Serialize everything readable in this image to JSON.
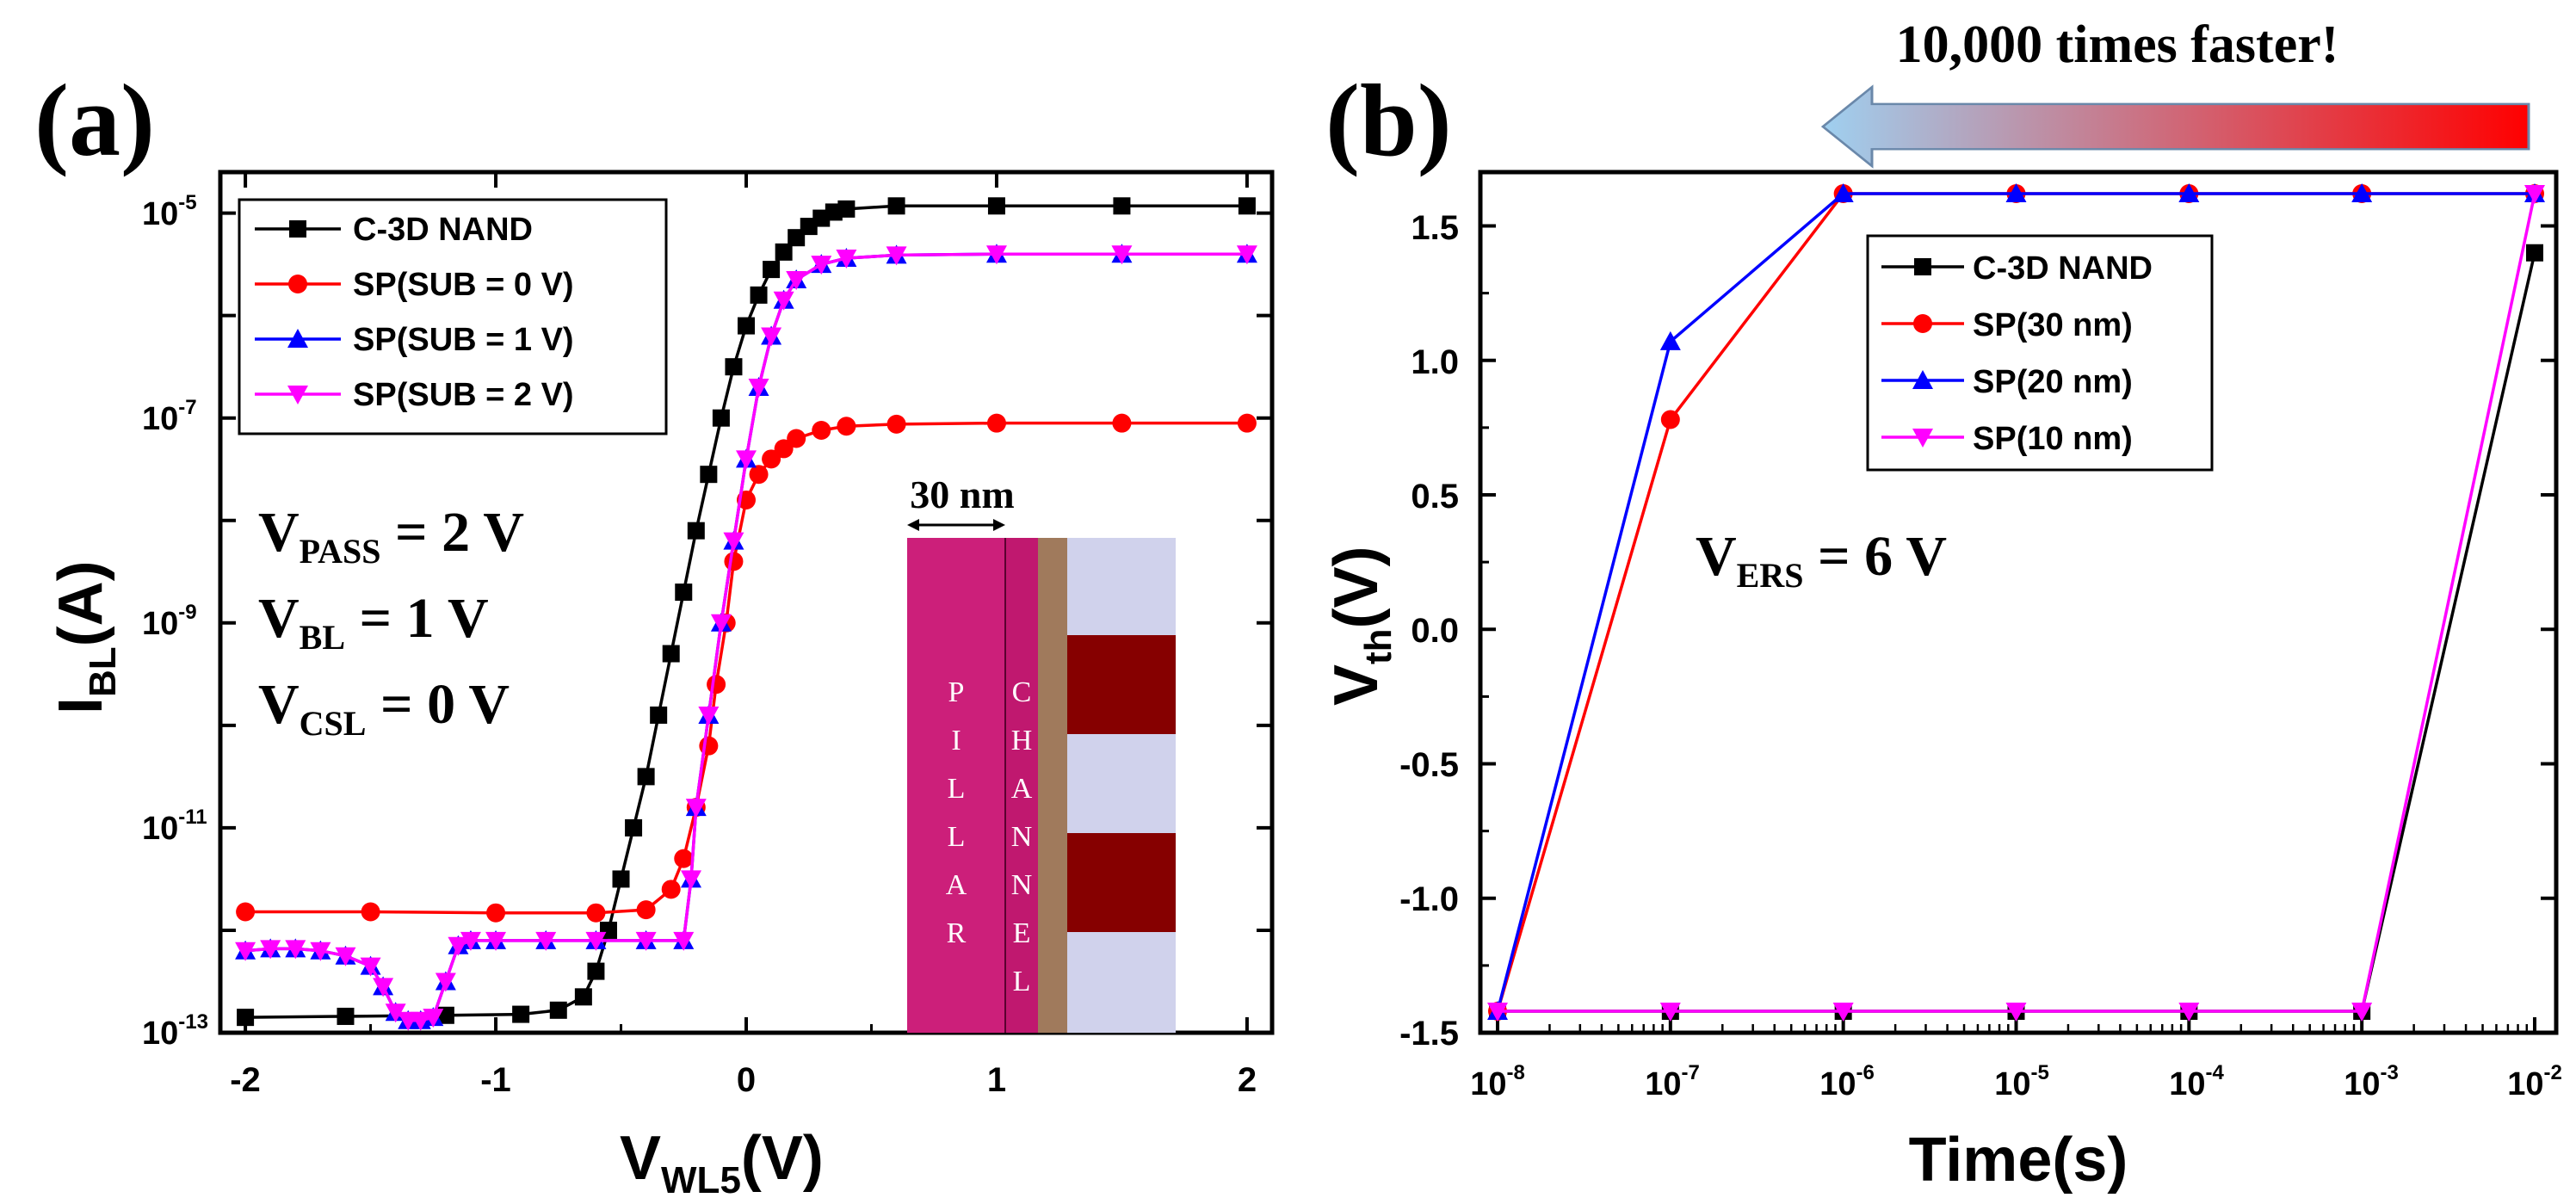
{
  "chart_data": [
    {
      "type": "line",
      "panel_label": "(a)",
      "xlabel_main": "V",
      "xlabel_sub": "WL5",
      "xlabel_unit": "(V)",
      "ylabel_main": "I",
      "ylabel_sub": "BL",
      "ylabel_unit": "(A)",
      "xlim": [
        -2.1,
        2.1
      ],
      "ylim_log10": [
        -13,
        -4.6
      ],
      "y_scale": "log",
      "x_ticks": [
        -2,
        -1,
        0,
        1,
        2
      ],
      "x_tick_labels": [
        "-2",
        "-1",
        "0",
        "1",
        "2"
      ],
      "y_ticks": [
        -13,
        -11,
        -9,
        -7,
        -5
      ],
      "y_tick_labels": [
        {
          "base": "10",
          "exp": "-13"
        },
        {
          "base": "10",
          "exp": "-11"
        },
        {
          "base": "10",
          "exp": "-9"
        },
        {
          "base": "10",
          "exp": "-7"
        },
        {
          "base": "10",
          "exp": "-5"
        }
      ],
      "legend_position": "top-left",
      "series": [
        {
          "name": "C-3D NAND",
          "color": "#000000",
          "marker": "square",
          "x": [
            -2.0,
            -1.6,
            -1.2,
            -0.9,
            -0.75,
            -0.65,
            -0.6,
            -0.55,
            -0.5,
            -0.45,
            -0.4,
            -0.35,
            -0.3,
            -0.25,
            -0.2,
            -0.15,
            -0.1,
            -0.05,
            0.0,
            0.05,
            0.1,
            0.15,
            0.2,
            0.25,
            0.3,
            0.35,
            0.4,
            0.6,
            1.0,
            1.5,
            2.0
          ],
          "y_log10": [
            -12.85,
            -12.84,
            -12.83,
            -12.82,
            -12.78,
            -12.65,
            -12.4,
            -12.0,
            -11.5,
            -11.0,
            -10.5,
            -9.9,
            -9.3,
            -8.7,
            -8.1,
            -7.55,
            -7.0,
            -6.5,
            -6.1,
            -5.8,
            -5.55,
            -5.38,
            -5.24,
            -5.13,
            -5.05,
            -4.99,
            -4.96,
            -4.93,
            -4.93,
            -4.93,
            -4.93
          ]
        },
        {
          "name": "SP(SUB = 0 V)",
          "color": "#ff0000",
          "marker": "circle",
          "x": [
            -2.0,
            -1.5,
            -1.0,
            -0.6,
            -0.4,
            -0.3,
            -0.25,
            -0.2,
            -0.15,
            -0.12,
            -0.08,
            -0.05,
            0.0,
            0.05,
            0.1,
            0.15,
            0.2,
            0.3,
            0.4,
            0.6,
            1.0,
            1.5,
            2.0
          ],
          "y_log10": [
            -11.82,
            -11.82,
            -11.83,
            -11.83,
            -11.8,
            -11.6,
            -11.3,
            -10.8,
            -10.2,
            -9.6,
            -9.0,
            -8.4,
            -7.8,
            -7.55,
            -7.4,
            -7.3,
            -7.2,
            -7.12,
            -7.08,
            -7.06,
            -7.05,
            -7.05,
            -7.05
          ]
        },
        {
          "name": "SP(SUB = 1 V)",
          "color": "#0000ff",
          "marker": "triangle-up",
          "x": [
            -2.0,
            -1.9,
            -1.8,
            -1.7,
            -1.6,
            -1.5,
            -1.45,
            -1.4,
            -1.35,
            -1.3,
            -1.25,
            -1.2,
            -1.15,
            -1.1,
            -1.0,
            -0.8,
            -0.6,
            -0.4,
            -0.25,
            -0.22,
            -0.2,
            -0.15,
            -0.1,
            -0.05,
            0.0,
            0.05,
            0.1,
            0.15,
            0.2,
            0.3,
            0.4,
            0.6,
            1.0,
            1.5,
            2.0
          ],
          "y_log10": [
            -12.2,
            -12.18,
            -12.18,
            -12.2,
            -12.25,
            -12.35,
            -12.55,
            -12.8,
            -12.88,
            -12.88,
            -12.85,
            -12.5,
            -12.15,
            -12.1,
            -12.1,
            -12.1,
            -12.1,
            -12.1,
            -12.1,
            -11.5,
            -10.8,
            -9.9,
            -9.0,
            -8.2,
            -7.4,
            -6.7,
            -6.2,
            -5.85,
            -5.65,
            -5.5,
            -5.44,
            -5.41,
            -5.4,
            -5.4,
            -5.4
          ]
        },
        {
          "name": "SP(SUB = 2 V)",
          "color": "#ff00ff",
          "marker": "triangle-down",
          "x": [
            -2.0,
            -1.9,
            -1.8,
            -1.7,
            -1.6,
            -1.5,
            -1.45,
            -1.4,
            -1.35,
            -1.3,
            -1.25,
            -1.2,
            -1.15,
            -1.1,
            -1.0,
            -0.8,
            -0.6,
            -0.4,
            -0.25,
            -0.22,
            -0.2,
            -0.15,
            -0.1,
            -0.05,
            0.0,
            0.05,
            0.1,
            0.15,
            0.2,
            0.3,
            0.4,
            0.6,
            1.0,
            1.5,
            2.0
          ],
          "y_log10": [
            -12.2,
            -12.18,
            -12.18,
            -12.2,
            -12.25,
            -12.35,
            -12.55,
            -12.8,
            -12.88,
            -12.88,
            -12.85,
            -12.5,
            -12.15,
            -12.1,
            -12.1,
            -12.1,
            -12.1,
            -12.1,
            -12.1,
            -11.5,
            -10.8,
            -9.9,
            -9.0,
            -8.2,
            -7.4,
            -6.7,
            -6.2,
            -5.85,
            -5.65,
            -5.5,
            -5.44,
            -5.41,
            -5.4,
            -5.4,
            -5.4
          ]
        }
      ],
      "annotations": [
        {
          "main": "V",
          "sub": "PASS",
          "rest": " = 2 V"
        },
        {
          "main": "V",
          "sub": "BL",
          "rest": " = 1 V"
        },
        {
          "main": "V",
          "sub": "CSL",
          "rest": " = 0 V"
        }
      ],
      "inset": {
        "dimension_label": "30 nm",
        "pillar_text": [
          "P",
          "I",
          "L",
          "L",
          "A",
          "R"
        ],
        "channel_text": [
          "C",
          "H",
          "A",
          "N",
          "N",
          "E",
          "L"
        ],
        "colors": {
          "pillar": "#cc1f7a",
          "channel": "#c0186f",
          "oxide": "#a07a5c",
          "spacer": "#d0d2ec",
          "gate": "#860000"
        }
      }
    },
    {
      "type": "line",
      "panel_label": "(b)",
      "xlabel": "Time(s)",
      "ylabel_main": "V",
      "ylabel_sub": "th",
      "ylabel_unit": "(V)",
      "x_scale": "log",
      "xlim_log10": [
        -8,
        -2
      ],
      "ylim": [
        -1.5,
        1.7
      ],
      "x_ticks": [
        -8,
        -7,
        -6,
        -5,
        -4,
        -3,
        -2
      ],
      "x_tick_labels": [
        {
          "base": "10",
          "exp": "-8"
        },
        {
          "base": "10",
          "exp": "-7"
        },
        {
          "base": "10",
          "exp": "-6"
        },
        {
          "base": "10",
          "exp": "-5"
        },
        {
          "base": "10",
          "exp": "-4"
        },
        {
          "base": "10",
          "exp": "-3"
        },
        {
          "base": "10",
          "exp": "-2"
        }
      ],
      "y_ticks": [
        -1.5,
        -1.0,
        -0.5,
        0.0,
        0.5,
        1.0,
        1.5
      ],
      "y_tick_labels": [
        "-1.5",
        "-1.0",
        "-0.5",
        "0.0",
        "0.5",
        "1.0",
        "1.5"
      ],
      "legend_position": "top-right",
      "series": [
        {
          "name": "C-3D NAND",
          "color": "#000000",
          "marker": "square",
          "x_log10": [
            -8,
            -7,
            -6,
            -5,
            -4,
            -3,
            -2
          ],
          "y": [
            -1.42,
            -1.42,
            -1.42,
            -1.42,
            -1.42,
            -1.42,
            1.4
          ]
        },
        {
          "name": "SP(30 nm)",
          "color": "#ff0000",
          "marker": "circle",
          "x_log10": [
            -8,
            -7,
            -6,
            -5,
            -4,
            -3,
            -2
          ],
          "y": [
            -1.42,
            0.78,
            1.62,
            1.62,
            1.62,
            1.62,
            1.62
          ]
        },
        {
          "name": "SP(20 nm)",
          "color": "#0000ff",
          "marker": "triangle-up",
          "x_log10": [
            -8,
            -7,
            -6,
            -5,
            -4,
            -3,
            -2
          ],
          "y": [
            -1.42,
            1.07,
            1.62,
            1.62,
            1.62,
            1.62,
            1.62
          ]
        },
        {
          "name": "SP(10 nm)",
          "color": "#ff00ff",
          "marker": "triangle-down",
          "x_log10": [
            -8,
            -7,
            -6,
            -5,
            -4,
            -3,
            -2
          ],
          "y": [
            -1.42,
            -1.42,
            -1.42,
            -1.42,
            -1.42,
            -1.42,
            1.62
          ]
        }
      ],
      "annotations": [
        {
          "main": "V",
          "sub": "ERS",
          "rest": " = 6 V"
        }
      ],
      "arrow_text": "10,000 times faster!",
      "arrow_colors": {
        "start": "#ff0000",
        "end": "#9fd0f0"
      }
    }
  ]
}
